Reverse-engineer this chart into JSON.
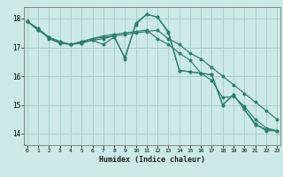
{
  "title": "",
  "xlabel": "Humidex (Indice chaleur)",
  "ylabel": "",
  "background_color": "#cce8e8",
  "grid_color": "#aacece",
  "line_color": "#2e7d6e",
  "xlim": [
    0,
    23
  ],
  "ylim": [
    13.6,
    18.4
  ],
  "yticks": [
    14,
    15,
    16,
    17,
    18
  ],
  "xticks": [
    0,
    1,
    2,
    3,
    4,
    5,
    6,
    7,
    8,
    9,
    10,
    11,
    12,
    13,
    14,
    15,
    16,
    17,
    18,
    19,
    20,
    21,
    22,
    23
  ],
  "series": [
    [
      17.9,
      17.65,
      17.3,
      17.15,
      17.1,
      17.15,
      17.25,
      17.1,
      17.35,
      16.65,
      17.8,
      18.15,
      18.05,
      17.5,
      16.2,
      16.15,
      16.1,
      16.05,
      15.0,
      15.35,
      14.85,
      14.35,
      14.1,
      14.1
    ],
    [
      17.9,
      17.65,
      17.35,
      17.2,
      17.1,
      17.2,
      17.3,
      17.4,
      17.45,
      17.5,
      17.55,
      17.6,
      17.3,
      17.1,
      16.8,
      16.55,
      16.1,
      15.85,
      15.25,
      15.3,
      14.95,
      14.5,
      14.2,
      14.1
    ],
    [
      17.9,
      17.6,
      17.35,
      17.15,
      17.1,
      17.15,
      17.25,
      17.3,
      17.4,
      16.6,
      17.85,
      18.15,
      18.05,
      17.55,
      16.2,
      16.15,
      16.1,
      16.05,
      15.0,
      15.35,
      14.85,
      14.3,
      14.15,
      14.1
    ],
    [
      17.9,
      17.6,
      17.35,
      17.2,
      17.1,
      17.2,
      17.3,
      17.35,
      17.4,
      17.45,
      17.5,
      17.55,
      17.6,
      17.3,
      17.1,
      16.8,
      16.6,
      16.3,
      16.0,
      15.7,
      15.4,
      15.1,
      14.8,
      14.5
    ]
  ]
}
